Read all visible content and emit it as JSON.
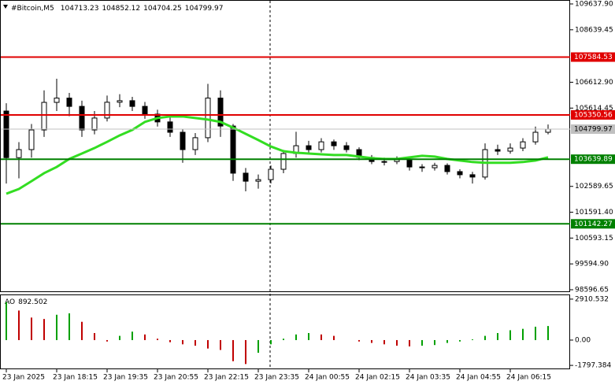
{
  "chart_data": [
    {
      "type": "candlestick",
      "title": "#Bitcoin,M5",
      "last_bar": [
        104713.23,
        104852.12,
        104704.25,
        104799.97
      ],
      "categories": [
        "23 Jan 2025",
        null,
        null,
        null,
        "23 Jan 18:15",
        null,
        null,
        null,
        "23 Jan 19:35",
        null,
        null,
        null,
        "23 Jan 20:55",
        null,
        null,
        null,
        "23 Jan 22:15",
        null,
        null,
        null,
        "23 Jan 23:35",
        null,
        null,
        null,
        "24 Jan 00:55",
        null,
        null,
        null,
        "24 Jan 02:15",
        null,
        null,
        null,
        "24 Jan 03:35",
        null,
        null,
        null,
        "24 Jan 04:55",
        null,
        null,
        null,
        "24 Jan 06:15",
        null,
        null,
        null
      ],
      "open": [
        105500,
        103700,
        104010,
        104770,
        105835,
        106000,
        105680,
        104770,
        105230,
        105840,
        105900,
        105680,
        105380,
        105080,
        104680,
        104010,
        104470,
        106000,
        104920,
        103100,
        102790,
        102850,
        103250,
        103860,
        104160,
        104010,
        104310,
        104160,
        104010,
        103710,
        103550,
        103550,
        103620,
        103340,
        103310,
        103400,
        103160,
        103040,
        102950,
        104010,
        103950,
        104070,
        104310,
        104680
      ],
      "high": [
        105800,
        104300,
        105000,
        106300,
        106750,
        106200,
        105900,
        105500,
        106100,
        106150,
        106050,
        105850,
        105550,
        105250,
        104800,
        104650,
        106550,
        106300,
        105000,
        103300,
        103050,
        103400,
        104000,
        104700,
        104350,
        104450,
        104400,
        104300,
        104100,
        103800,
        103700,
        103750,
        103700,
        103450,
        103500,
        103480,
        103250,
        103150,
        104250,
        104200,
        104250,
        104450,
        104900,
        104980
      ],
      "low": [
        102700,
        102900,
        103700,
        104500,
        105500,
        105300,
        104500,
        104600,
        105100,
        105650,
        105500,
        105200,
        104900,
        104500,
        103500,
        103800,
        104300,
        104500,
        102800,
        102400,
        102500,
        102700,
        103100,
        103700,
        103850,
        103900,
        104000,
        103900,
        103600,
        103450,
        103400,
        103450,
        103200,
        103150,
        103200,
        103050,
        102900,
        102700,
        102850,
        103800,
        103850,
        103950,
        104200,
        104600
      ],
      "close": [
        103700,
        104010,
        104770,
        105835,
        106000,
        105680,
        104770,
        105230,
        105840,
        105900,
        105680,
        105380,
        105080,
        104680,
        104010,
        104470,
        106000,
        104920,
        103100,
        102790,
        102850,
        103250,
        103860,
        104160,
        104010,
        104310,
        104160,
        104010,
        103710,
        103550,
        103550,
        103620,
        103340,
        103310,
        103400,
        103160,
        103040,
        102950,
        104010,
        103950,
        104070,
        104310,
        104680,
        104800
      ],
      "ma": {
        "color": "#33dd22",
        "values": [
          102306,
          102490,
          102790,
          103100,
          103340,
          103650,
          103860,
          104070,
          104310,
          104560,
          104770,
          105080,
          105230,
          105290,
          105290,
          105230,
          105170,
          105080,
          104860,
          104620,
          104380,
          104130,
          103950,
          103890,
          103860,
          103830,
          103800,
          103800,
          103740,
          103680,
          103650,
          103650,
          103710,
          103770,
          103740,
          103650,
          103590,
          103530,
          103500,
          103500,
          103500,
          103530,
          103590,
          103710
        ]
      },
      "levels": [
        {
          "value": 107584.53,
          "color": "#e00000"
        },
        {
          "value": 105350.56,
          "color": "#e00000"
        },
        {
          "value": 103639.89,
          "color": "#008000"
        },
        {
          "value": 101142.27,
          "color": "#008000"
        }
      ],
      "price_line": {
        "value": 104799.97,
        "color": "#c0c0c0"
      },
      "ylim": [
        98596.65,
        109637.9
      ],
      "yticks": [
        {
          "value": 109637.9,
          "label": "109637.90"
        },
        108639.45,
        {
          "value": 106612.9,
          "label": "106612.90"
        },
        105614.45,
        102589.65,
        {
          "value": 101591.4,
          "label": "101591.40"
        },
        100593.15,
        {
          "value": 99594.9,
          "label": "99594.90"
        },
        98596.65
      ]
    },
    {
      "type": "bar",
      "title": "AO",
      "current": 892.502,
      "values": [
        2700,
        2100,
        1600,
        1500,
        1800,
        1900,
        1300,
        500,
        -100,
        300,
        600,
        400,
        100,
        -150,
        -300,
        -400,
        -600,
        -700,
        -1500,
        -1700,
        -900,
        -300,
        100,
        400,
        500,
        400,
        300,
        0,
        -100,
        -200,
        -300,
        -400,
        -450,
        -400,
        -350,
        -200,
        -100,
        50,
        300,
        500,
        700,
        800,
        950,
        1000
      ],
      "up_color": "#00a000",
      "down_color": "#c00000",
      "ylim": [
        -1960,
        3130
      ],
      "yticks": [
        2910.532,
        {
          "value": 0,
          "label": "0.00"
        },
        -1797.384
      ]
    }
  ]
}
